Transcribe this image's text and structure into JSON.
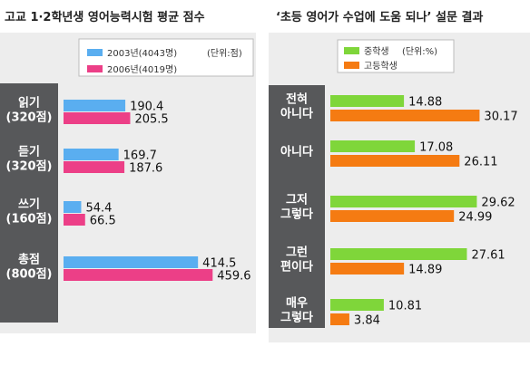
{
  "colors": {
    "blue": "#5aaef0",
    "pink": "#ec3f87",
    "green": "#7fd63a",
    "orange": "#f57b12",
    "label_bg": "#57585a",
    "panel_bg": "#ededed"
  },
  "chart_data": [
    {
      "type": "bar",
      "orientation": "horizontal",
      "title": "고교 1·2학년생 영어능력시험 평균 점수",
      "legend_placement": "top",
      "legend_note": "(단위:점)",
      "categories": [
        "읽기\n(320점)",
        "듣기\n(320점)",
        "쓰기\n(160점)",
        "총점\n(800점)"
      ],
      "series": [
        {
          "name": "2003년(4043명)",
          "color": "#5aaef0",
          "values": [
            190.4,
            169.7,
            54.4,
            414.5
          ]
        },
        {
          "name": "2006년(4019명)",
          "color": "#ec3f87",
          "values": [
            205.5,
            187.6,
            66.5,
            459.6
          ]
        }
      ],
      "value_labels": [
        [
          "190.4",
          "169.7",
          "54.4",
          "414.5"
        ],
        [
          "205.5",
          "187.6",
          "66.5",
          "459.6"
        ]
      ]
    },
    {
      "type": "bar",
      "orientation": "horizontal",
      "title": "‘초등 영어가 수업에 도움 되나’ 설문 결과",
      "legend_placement": "top",
      "legend_note": "(단위:%)",
      "categories": [
        "전혀\n아니다",
        "아니다",
        "그저\n그렇다",
        "그런\n편이다",
        "매우\n그렇다"
      ],
      "series": [
        {
          "name": "중학생",
          "color": "#7fd63a",
          "values": [
            14.88,
            17.08,
            29.62,
            27.61,
            10.81
          ]
        },
        {
          "name": "고등학생",
          "color": "#f57b12",
          "values": [
            30.17,
            26.11,
            24.99,
            14.89,
            3.84
          ]
        }
      ],
      "value_labels": [
        [
          "14.88",
          "17.08",
          "29.62",
          "27.61",
          "10.81"
        ],
        [
          "30.17",
          "26.11",
          "24.99",
          "14.89",
          "3.84"
        ]
      ]
    }
  ]
}
